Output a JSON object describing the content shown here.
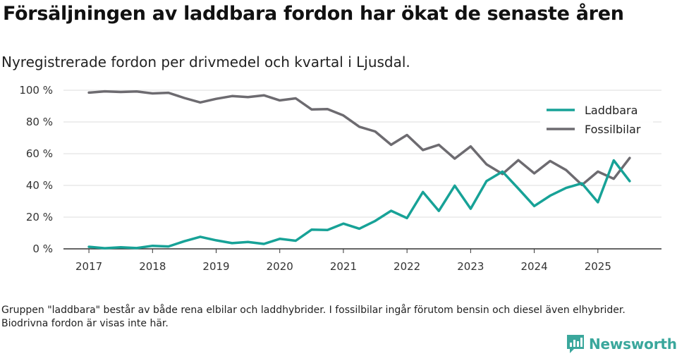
{
  "title": "Försäljningen av laddbara fordon har ökat de senaste åren",
  "subtitle": "Nyregistrerade fordon per drivmedel och kvartal i Ljusdal.",
  "footnote": "Gruppen \"laddbara\" består av både rena elbilar och laddhybrider. I fossilbilar ingår förutom bensin och diesel även elhybrider. Biodrivna fordon är visas inte här.",
  "brand": {
    "name": "Newsworthy",
    "color": "#3aa79c",
    "icon": "newsworthy-logo-icon"
  },
  "chart_data": {
    "type": "line",
    "x_start": 2017.0,
    "x_step": 0.25,
    "xlim": [
      2016.6,
      2026.0
    ],
    "ylim": [
      0,
      100
    ],
    "x_ticks": [
      2017,
      2018,
      2019,
      2020,
      2021,
      2022,
      2023,
      2024,
      2025
    ],
    "x_tick_labels": [
      "2017",
      "2018",
      "2019",
      "2020",
      "2021",
      "2022",
      "2023",
      "2024",
      "2025"
    ],
    "y_ticks": [
      0,
      20,
      40,
      60,
      80,
      100
    ],
    "y_tick_labels": [
      "0 %",
      "20 %",
      "40 %",
      "60 %",
      "80 %",
      "100 %"
    ],
    "grid": true,
    "legend_position": "top-right",
    "series": [
      {
        "name": "Laddbara",
        "color": "#17a297",
        "values": [
          1.3,
          0.4,
          1.0,
          0.5,
          1.9,
          1.5,
          4.8,
          7.6,
          5.4,
          3.6,
          4.3,
          3.1,
          6.3,
          5.1,
          12.1,
          11.9,
          15.9,
          12.7,
          17.6,
          24.0,
          19.4,
          35.8,
          23.9,
          39.8,
          25.3,
          42.7,
          48.7,
          38.0,
          27.0,
          33.5,
          38.4,
          41.3,
          29.4,
          55.8,
          42.7
        ]
      },
      {
        "name": "Fossilbilar",
        "color": "#6d6b70",
        "values": [
          98.5,
          99.3,
          98.9,
          99.2,
          98.0,
          98.4,
          95.1,
          92.3,
          94.6,
          96.3,
          95.7,
          96.8,
          93.6,
          94.9,
          87.9,
          88.1,
          84.1,
          77.0,
          74.0,
          65.6,
          71.8,
          62.3,
          65.6,
          56.9,
          64.6,
          53.3,
          47.2,
          55.9,
          47.6,
          55.4,
          49.7,
          40.3,
          48.7,
          44.2,
          57.3
        ]
      }
    ]
  }
}
